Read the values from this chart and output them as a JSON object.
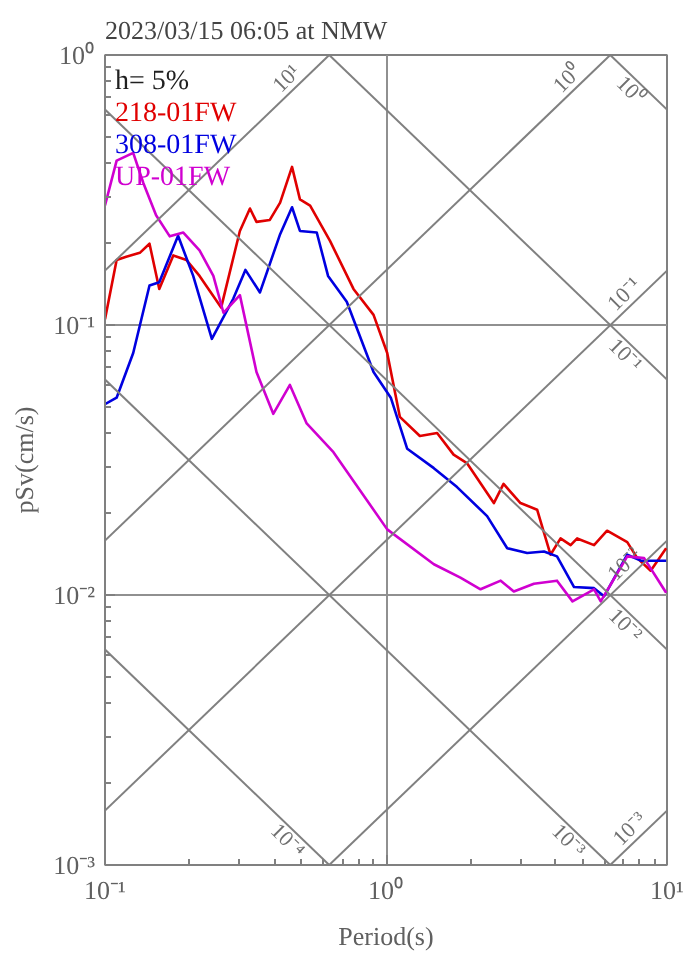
{
  "chart_data": {
    "type": "line",
    "title": "2023/03/15 06:05 at NMW",
    "xlabel": "Period(s)",
    "ylabel": "pSv(cm/s)",
    "annotations": [
      "h= 5%"
    ],
    "log": "xy",
    "grid": true,
    "legend": "top left",
    "xlim": [
      0.1,
      10
    ],
    "ylim": [
      0.001,
      1
    ],
    "xticks": [
      {
        "value": 0.1,
        "label": "10⁻¹"
      },
      {
        "value": 1,
        "label": "10⁰"
      },
      {
        "value": 10,
        "label": "10¹"
      }
    ],
    "yticks": [
      {
        "value": 0.001,
        "label": "10⁻³"
      },
      {
        "value": 0.01,
        "label": "10⁻²"
      },
      {
        "value": 0.1,
        "label": "10⁻¹"
      },
      {
        "value": 1,
        "label": "10⁰"
      }
    ],
    "series": [
      {
        "name": "218-01FW",
        "color": "#e00000",
        "x": [
          0.1,
          0.11,
          0.119,
          0.133,
          0.144,
          0.156,
          0.175,
          0.195,
          0.217,
          0.259,
          0.302,
          0.328,
          0.346,
          0.386,
          0.42,
          0.463,
          0.494,
          0.537,
          0.632,
          0.766,
          0.903,
          1.01,
          1.12,
          1.32,
          1.52,
          1.74,
          1.94,
          2.42,
          2.62,
          3.01,
          3.45,
          3.85,
          4.18,
          4.54,
          4.79,
          5.5,
          6.12,
          7.22,
          7.84,
          8.75,
          9.93
        ],
        "values": [
          0.105,
          0.174,
          0.179,
          0.185,
          0.2,
          0.136,
          0.181,
          0.174,
          0.152,
          0.116,
          0.223,
          0.27,
          0.241,
          0.245,
          0.284,
          0.385,
          0.292,
          0.277,
          0.205,
          0.136,
          0.109,
          0.0788,
          0.0457,
          0.0388,
          0.0398,
          0.0331,
          0.0308,
          0.0219,
          0.0258,
          0.0219,
          0.0207,
          0.0141,
          0.0162,
          0.0153,
          0.0162,
          0.0153,
          0.0173,
          0.0157,
          0.0137,
          0.0123,
          0.0149
        ]
      },
      {
        "name": "308-01FW",
        "color": "#0000e0",
        "x": [
          0.1,
          0.11,
          0.126,
          0.144,
          0.156,
          0.182,
          0.206,
          0.24,
          0.286,
          0.316,
          0.356,
          0.42,
          0.463,
          0.494,
          0.567,
          0.622,
          0.725,
          0.903,
          1.04,
          1.19,
          1.48,
          1.79,
          2.29,
          2.7,
          3.18,
          3.65,
          4.06,
          4.67,
          5.5,
          5.97,
          7.22,
          8.07,
          9.93
        ],
        "values": [
          0.0509,
          0.0538,
          0.0788,
          0.14,
          0.144,
          0.214,
          0.152,
          0.0889,
          0.125,
          0.16,
          0.132,
          0.217,
          0.273,
          0.223,
          0.22,
          0.152,
          0.122,
          0.067,
          0.0538,
          0.0348,
          0.0295,
          0.0251,
          0.0196,
          0.0149,
          0.0143,
          0.0145,
          0.0139,
          0.0107,
          0.0106,
          0.00989,
          0.0141,
          0.0134,
          0.0134
        ]
      },
      {
        "name": "UP-01FW",
        "color": "#d000d0",
        "x": [
          0.1,
          0.11,
          0.126,
          0.137,
          0.152,
          0.17,
          0.19,
          0.217,
          0.243,
          0.264,
          0.302,
          0.346,
          0.397,
          0.455,
          0.522,
          0.65,
          1.01,
          1.48,
          1.84,
          2.17,
          2.56,
          2.85,
          3.36,
          4.06,
          4.61,
          5.5,
          5.81,
          7.22,
          8.29,
          9.93
        ],
        "values": [
          0.277,
          0.406,
          0.434,
          0.335,
          0.255,
          0.213,
          0.22,
          0.189,
          0.152,
          0.111,
          0.129,
          0.067,
          0.0469,
          0.06,
          0.0432,
          0.0338,
          0.0175,
          0.013,
          0.0116,
          0.0105,
          0.0113,
          0.0103,
          0.011,
          0.0113,
          0.00947,
          0.0105,
          0.00947,
          0.0139,
          0.0137,
          0.0102
        ]
      },
      {
        "name": "10¹",
        "color": "#808080",
        "x": [
          0.1,
          0.628
        ],
        "values": [
          0.159,
          1
        ]
      },
      {
        "name": "10⁰",
        "color": "#808080",
        "x": [
          0.1,
          6.28
        ],
        "values": [
          0.0159,
          1
        ]
      },
      {
        "name": "10⁻¹",
        "color": "#808080",
        "x": [
          0.1,
          10
        ],
        "values": [
          0.00159,
          0.159
        ]
      },
      {
        "name": "10⁻²",
        "color": "#808080",
        "x": [
          0.628,
          10
        ],
        "values": [
          0.001,
          0.0159
        ]
      },
      {
        "name": "10⁻³",
        "color": "#808080",
        "x": [
          6.28,
          10
        ],
        "values": [
          0.001,
          0.00159
        ]
      },
      {
        "name": "10⁰",
        "color": "#808080",
        "x": [
          6.28,
          10
        ],
        "values": [
          1,
          0.628
        ]
      },
      {
        "name": "10⁻¹",
        "color": "#808080",
        "x": [
          0.628,
          10
        ],
        "values": [
          1,
          0.0628
        ]
      },
      {
        "name": "10⁻²",
        "color": "#808080",
        "x": [
          0.1,
          10
        ],
        "values": [
          0.628,
          0.00628
        ]
      },
      {
        "name": "10⁻³",
        "color": "#808080",
        "x": [
          0.1,
          6.28
        ],
        "values": [
          0.0628,
          0.001
        ]
      },
      {
        "name": "10⁻⁴",
        "color": "#808080",
        "x": [
          0.1,
          0.628
        ],
        "values": [
          0.00628,
          0.001
        ]
      }
    ]
  }
}
